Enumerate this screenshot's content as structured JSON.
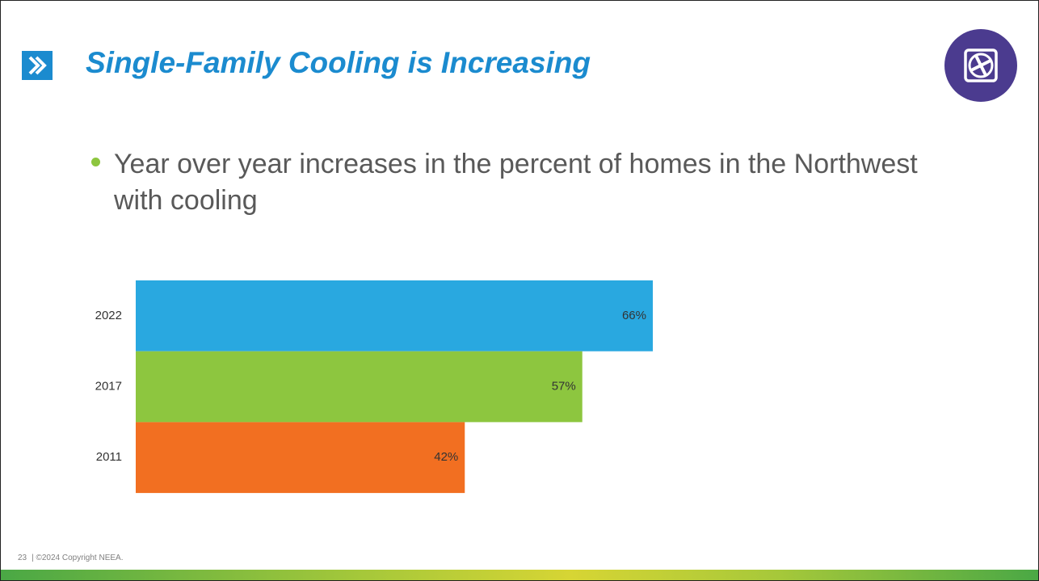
{
  "slide": {
    "title": "Single-Family Cooling is Increasing",
    "bullets": [
      "Year over year increases in the percent of homes in the Northwest with cooling"
    ]
  },
  "chart_data": {
    "type": "bar",
    "orientation": "horizontal",
    "categories": [
      "2022",
      "2017",
      "2011"
    ],
    "values": [
      66,
      57,
      42
    ],
    "value_labels": [
      "66%",
      "57%",
      "42%"
    ],
    "colors": [
      "#29a8e0",
      "#8dc63f",
      "#f26f21"
    ]
  },
  "footer": {
    "page": "23",
    "copyright": "| ©2024 Copyright NEEA."
  }
}
